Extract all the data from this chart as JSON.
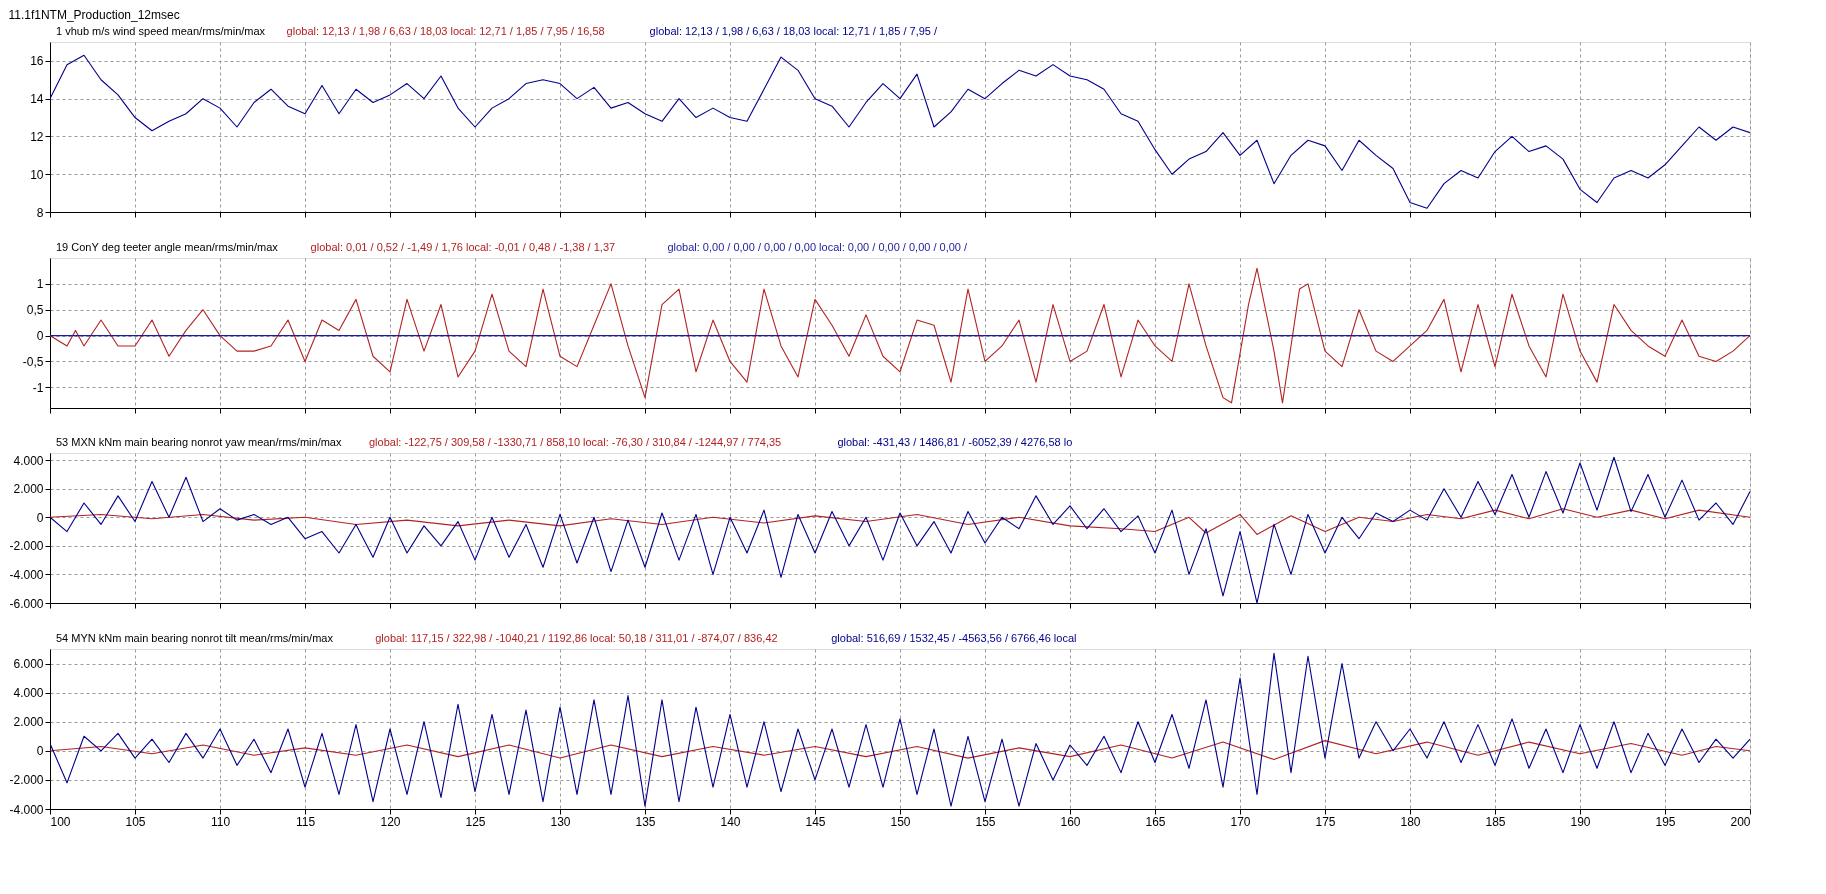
{
  "chart_data": [
    {
      "type": "line",
      "title": "11.1f1NTM_Production_12msec",
      "subtitle": "1 vhub m/s wind speed mean/rms/min/max",
      "legend": "top",
      "grid": true,
      "tick_labels": "y",
      "xlim": [
        100,
        200
      ],
      "xticks": [
        100,
        105,
        110,
        115,
        120,
        125,
        130,
        135,
        140,
        145,
        150,
        155,
        160,
        165,
        170,
        175,
        180,
        185,
        190,
        195,
        200
      ],
      "ylim": [
        8,
        17
      ],
      "yticks": [
        8,
        10,
        12,
        14,
        16
      ],
      "series": [
        {
          "name": "global: 12,13 / 1,98 / 6,63 / 18,03 local: 12,71 / 1,85 / 7,95 / 16,58",
          "color": "#b22222"
        },
        {
          "name": "global: 12,13 / 1,98 / 6,63 / 18,03 local: 12,71 / 1,85 / 7,95 /",
          "color": "#00008b",
          "x": [
            100,
            101,
            102,
            103,
            104,
            105,
            106,
            107,
            108,
            109,
            110,
            111,
            112,
            113,
            114,
            115,
            116,
            117,
            118,
            119,
            120,
            121,
            122,
            123,
            124,
            125,
            126,
            127,
            128,
            129,
            130,
            131,
            132,
            133,
            134,
            135,
            136,
            137,
            138,
            139,
            140,
            141,
            142,
            143,
            144,
            145,
            146,
            147,
            148,
            149,
            150,
            151,
            152,
            153,
            154,
            155,
            156,
            157,
            158,
            159,
            160,
            161,
            162,
            163,
            164,
            165,
            166,
            167,
            168,
            169,
            170,
            171,
            172,
            173,
            174,
            175,
            176,
            177,
            178,
            179,
            180,
            181,
            182,
            183,
            184,
            185,
            186,
            187,
            188,
            189,
            190,
            191,
            192,
            193,
            194,
            195,
            196,
            197,
            198,
            199,
            200
          ],
          "values": [
            14,
            15.8,
            16.3,
            15,
            14.2,
            13,
            12.3,
            12.8,
            13.2,
            14,
            13.5,
            12.5,
            13.8,
            14.5,
            13.6,
            13.2,
            14.7,
            13.2,
            14.5,
            13.8,
            14.2,
            14.8,
            14,
            15.2,
            13.5,
            12.5,
            13.5,
            14,
            14.8,
            15,
            14.8,
            14,
            14.6,
            13.5,
            13.8,
            13.2,
            12.8,
            14,
            13,
            13.5,
            13,
            12.8,
            14.5,
            16.2,
            15.5,
            14,
            13.6,
            12.5,
            13.8,
            14.8,
            14,
            15.3,
            12.5,
            13.3,
            14.5,
            14,
            14.8,
            15.5,
            15.2,
            15.8,
            15.2,
            15,
            14.5,
            13.2,
            12.8,
            11.3,
            10,
            10.8,
            11.2,
            12.2,
            11,
            11.8,
            9.5,
            11,
            11.8,
            11.5,
            10.2,
            11.8,
            11,
            10.3,
            8.5,
            8.2,
            9.5,
            10.2,
            9.8,
            11.2,
            12,
            11.2,
            11.5,
            10.8,
            9.2,
            8.5,
            9.8,
            10.2,
            9.8,
            10.5,
            11.5,
            12.5,
            11.8,
            12.5,
            12.2
          ]
        }
      ]
    },
    {
      "type": "line",
      "subtitle": "19 ConY deg teeter angle mean/rms/min/max",
      "legend": "top",
      "grid": true,
      "tick_labels": "y",
      "xlim": [
        100,
        200
      ],
      "xticks": [
        100,
        105,
        110,
        115,
        120,
        125,
        130,
        135,
        140,
        145,
        150,
        155,
        160,
        165,
        170,
        175,
        180,
        185,
        190,
        195,
        200
      ],
      "ylim": [
        -1.4,
        1.5
      ],
      "yticks": [
        {
          "value": -1,
          "label": "-1"
        },
        {
          "value": -0.5,
          "label": "-0,5"
        },
        0,
        {
          "value": 0.5,
          "label": "0,5"
        },
        1
      ],
      "series": [
        {
          "name": "global: 0,01 / 0,52 / -1,49 / 1,76 local: -0,01 / 0,48 / -1,38 / 1,37",
          "color": "#b22222",
          "x": [
            100,
            101,
            101.5,
            102,
            103,
            104,
            105,
            106,
            107,
            108,
            109,
            110,
            111,
            112,
            113,
            114,
            115,
            116,
            117,
            118,
            119,
            120,
            121,
            122,
            123,
            124,
            125,
            126,
            127,
            128,
            129,
            130,
            131,
            132,
            133,
            134,
            135,
            136,
            137,
            138,
            139,
            140,
            141,
            142,
            143,
            144,
            145,
            146,
            147,
            148,
            149,
            150,
            151,
            152,
            153,
            154,
            155,
            156,
            157,
            158,
            159,
            160,
            161,
            162,
            163,
            164,
            165,
            166,
            167,
            168,
            169,
            169.5,
            170.5,
            171,
            172,
            172.5,
            173.5,
            174,
            175,
            176,
            177,
            178,
            179,
            180,
            181,
            182,
            183,
            184,
            185,
            186,
            187,
            188,
            189,
            190,
            191,
            192,
            193,
            194,
            195,
            196,
            197,
            198,
            199,
            200
          ],
          "values": [
            0,
            -0.2,
            0.1,
            -0.2,
            0.3,
            -0.2,
            -0.2,
            0.3,
            -0.4,
            0.1,
            0.5,
            0,
            -0.3,
            -0.3,
            -0.2,
            0.3,
            -0.5,
            0.3,
            0.1,
            0.7,
            -0.4,
            -0.7,
            0.7,
            -0.3,
            0.6,
            -0.8,
            -0.3,
            0.8,
            -0.3,
            -0.6,
            0.9,
            -0.4,
            -0.6,
            0.2,
            1.0,
            -0.2,
            -1.2,
            0.6,
            0.9,
            -0.7,
            0.3,
            -0.5,
            -0.9,
            0.9,
            -0.2,
            -0.8,
            0.7,
            0.2,
            -0.4,
            0.4,
            -0.4,
            -0.7,
            0.3,
            0.2,
            -0.9,
            0.9,
            -0.5,
            -0.2,
            0.3,
            -0.9,
            0.6,
            -0.5,
            -0.3,
            0.6,
            -0.8,
            0.3,
            -0.2,
            -0.5,
            1.0,
            -0.2,
            -1.2,
            -1.3,
            0.6,
            1.3,
            -0.3,
            -1.3,
            0.9,
            1.0,
            -0.3,
            -0.6,
            0.5,
            -0.3,
            -0.5,
            -0.2,
            0.1,
            0.7,
            -0.7,
            0.6,
            -0.6,
            0.8,
            -0.2,
            -0.8,
            0.8,
            -0.3,
            -0.9,
            0.6,
            0.1,
            -0.2,
            -0.4,
            0.3,
            -0.4,
            -0.5,
            -0.3,
            0
          ]
        },
        {
          "name": "global: 0,00 / 0,00 / 0,00 / 0,00 local: 0,00 / 0,00 / 0,00 / 0,00 /",
          "color": "#1c1ca0",
          "x": [
            100,
            200
          ],
          "values": [
            0,
            0
          ]
        }
      ]
    },
    {
      "type": "line",
      "subtitle": "53 MXN kNm main bearing nonrot yaw mean/rms/min/max",
      "legend": "top",
      "grid": true,
      "tick_labels": "y",
      "xlim": [
        100,
        200
      ],
      "xticks": [
        100,
        105,
        110,
        115,
        120,
        125,
        130,
        135,
        140,
        145,
        150,
        155,
        160,
        165,
        170,
        175,
        180,
        185,
        190,
        195,
        200
      ],
      "ylim": [
        -6000,
        4500
      ],
      "yticks": [
        {
          "value": -6000,
          "label": "-6.000"
        },
        {
          "value": -4000,
          "label": "-4.000"
        },
        {
          "value": -2000,
          "label": "-2.000"
        },
        0,
        {
          "value": 2000,
          "label": "2.000"
        },
        {
          "value": 4000,
          "label": "4.000"
        }
      ],
      "series": [
        {
          "name": "global: -122,75 / 309,58 / -1330,71 / 858,10 local: -76,30 / 310,84 / -1244,97 / 774,35",
          "color": "#b22222",
          "x": [
            100,
            103,
            106,
            109,
            112,
            115,
            118,
            121,
            124,
            127,
            130,
            133,
            136,
            139,
            142,
            145,
            148,
            151,
            154,
            157,
            160,
            163,
            165,
            167,
            168,
            170,
            171,
            173,
            175,
            177,
            179,
            181,
            183,
            185,
            187,
            189,
            191,
            193,
            195,
            197,
            200
          ],
          "values": [
            0,
            200,
            -100,
            200,
            -200,
            0,
            -500,
            -200,
            -600,
            -200,
            -600,
            -100,
            -500,
            0,
            -400,
            100,
            -300,
            200,
            -500,
            0,
            -600,
            -800,
            -1000,
            0,
            -1100,
            200,
            -1200,
            100,
            -1000,
            0,
            -300,
            200,
            -100,
            500,
            -100,
            600,
            0,
            500,
            -100,
            500,
            0
          ]
        },
        {
          "name": "global: -431,43 / 1486,81 / -6052,39 / 4276,58 lo",
          "color": "#00008b",
          "x": [
            100,
            101,
            102,
            103,
            104,
            105,
            106,
            107,
            108,
            109,
            110,
            111,
            112,
            113,
            114,
            115,
            116,
            117,
            118,
            119,
            120,
            121,
            122,
            123,
            124,
            125,
            126,
            127,
            128,
            129,
            130,
            131,
            132,
            133,
            134,
            135,
            136,
            137,
            138,
            139,
            140,
            141,
            142,
            143,
            144,
            145,
            146,
            147,
            148,
            149,
            150,
            151,
            152,
            153,
            154,
            155,
            156,
            157,
            158,
            159,
            160,
            161,
            162,
            163,
            164,
            165,
            166,
            167,
            168,
            169,
            170,
            171,
            172,
            173,
            174,
            175,
            176,
            177,
            178,
            179,
            180,
            181,
            182,
            183,
            184,
            185,
            186,
            187,
            188,
            189,
            190,
            191,
            192,
            193,
            194,
            195,
            196,
            197,
            198,
            199,
            200
          ],
          "values": [
            0,
            -1000,
            1000,
            -500,
            1500,
            -300,
            2500,
            0,
            2800,
            -300,
            600,
            -200,
            200,
            -500,
            0,
            -1500,
            -1000,
            -2500,
            -500,
            -2800,
            0,
            -2500,
            -600,
            -2000,
            -300,
            -3000,
            0,
            -2800,
            -500,
            -3500,
            200,
            -3200,
            0,
            -3800,
            -200,
            -3500,
            300,
            -3000,
            200,
            -4000,
            0,
            -2500,
            500,
            -4200,
            200,
            -2500,
            400,
            -2000,
            0,
            -3000,
            300,
            -2000,
            -300,
            -2500,
            400,
            -1800,
            0,
            -800,
            1500,
            -500,
            800,
            -800,
            600,
            -1000,
            100,
            -2500,
            500,
            -4000,
            -800,
            -5500,
            -1000,
            -6000,
            -500,
            -4000,
            200,
            -2500,
            0,
            -1500,
            300,
            -300,
            500,
            -200,
            2000,
            0,
            2500,
            200,
            3000,
            0,
            3200,
            300,
            3800,
            500,
            4200,
            400,
            3000,
            0,
            2600,
            -200,
            1000,
            -500,
            1800
          ]
        }
      ]
    },
    {
      "type": "line",
      "subtitle": "54 MYN kNm main bearing nonrot tilt mean/rms/min/max",
      "legend": "top",
      "grid": true,
      "xlim": [
        100,
        200
      ],
      "xticks": [
        100,
        105,
        110,
        115,
        120,
        125,
        130,
        135,
        140,
        145,
        150,
        155,
        160,
        165,
        170,
        175,
        180,
        185,
        190,
        195,
        200
      ],
      "ylim": [
        -4000,
        7000
      ],
      "yticks": [
        {
          "value": -4000,
          "label": "-4.000"
        },
        {
          "value": -2000,
          "label": "-2.000"
        },
        0,
        {
          "value": 2000,
          "label": "2.000"
        },
        {
          "value": 4000,
          "label": "4.000"
        },
        {
          "value": 6000,
          "label": "6.000"
        }
      ],
      "series": [
        {
          "name": "global: 117,15 / 322,98 / -1040,21 / 1192,86 local: 50,18 / 311,01 / -874,07 / 836,42",
          "color": "#b22222",
          "x": [
            100,
            103,
            106,
            109,
            112,
            115,
            118,
            121,
            124,
            127,
            130,
            133,
            136,
            139,
            142,
            145,
            148,
            151,
            154,
            157,
            160,
            163,
            166,
            169,
            172,
            175,
            178,
            181,
            184,
            187,
            190,
            193,
            196,
            198,
            200
          ],
          "values": [
            0,
            300,
            -200,
            400,
            -300,
            200,
            -300,
            400,
            -400,
            400,
            -500,
            400,
            -400,
            300,
            -300,
            300,
            -400,
            300,
            -500,
            200,
            -400,
            400,
            -500,
            600,
            -600,
            700,
            -200,
            600,
            -300,
            600,
            -200,
            500,
            -300,
            300,
            0
          ]
        },
        {
          "name": "global: 516,69 / 1532,45 / -4563,56 / 6766,46 local",
          "color": "#00008b",
          "x": [
            100,
            101,
            102,
            103,
            104,
            105,
            106,
            107,
            108,
            109,
            110,
            111,
            112,
            113,
            114,
            115,
            116,
            117,
            118,
            119,
            120,
            121,
            122,
            123,
            124,
            125,
            126,
            127,
            128,
            129,
            130,
            131,
            132,
            133,
            134,
            135,
            136,
            137,
            138,
            139,
            140,
            141,
            142,
            143,
            144,
            145,
            146,
            147,
            148,
            149,
            150,
            151,
            152,
            153,
            154,
            155,
            156,
            157,
            158,
            159,
            160,
            161,
            162,
            163,
            164,
            165,
            166,
            167,
            168,
            169,
            170,
            171,
            172,
            173,
            174,
            175,
            176,
            177,
            178,
            179,
            180,
            181,
            182,
            183,
            184,
            185,
            186,
            187,
            188,
            189,
            190,
            191,
            192,
            193,
            194,
            195,
            196,
            197,
            198,
            199,
            200
          ],
          "values": [
            500,
            -2200,
            1000,
            0,
            1200,
            -500,
            800,
            -800,
            1200,
            -500,
            1500,
            -1000,
            800,
            -1500,
            1500,
            -2500,
            1200,
            -3000,
            1800,
            -3500,
            1500,
            -3000,
            2000,
            -3200,
            3200,
            -2800,
            2500,
            -3000,
            2800,
            -3500,
            3000,
            -3000,
            3500,
            -3000,
            3800,
            -3800,
            3500,
            -3500,
            3000,
            -2500,
            2500,
            -2500,
            2000,
            -2800,
            1500,
            -2000,
            1500,
            -2500,
            1800,
            -2500,
            2200,
            -3000,
            1500,
            -3800,
            1000,
            -3500,
            800,
            -3800,
            500,
            -2000,
            400,
            -1000,
            1000,
            -1500,
            2000,
            -800,
            2500,
            -1200,
            3500,
            -2500,
            5000,
            -3000,
            6700,
            -1500,
            6500,
            -500,
            6000,
            -500,
            2000,
            0,
            1500,
            -500,
            2000,
            -800,
            1800,
            -1000,
            2200,
            -1200,
            1500,
            -1500,
            1800,
            -1200,
            2000,
            -1500,
            1200,
            -1000,
            1500,
            -800,
            800,
            -500,
            800
          ]
        }
      ]
    }
  ]
}
